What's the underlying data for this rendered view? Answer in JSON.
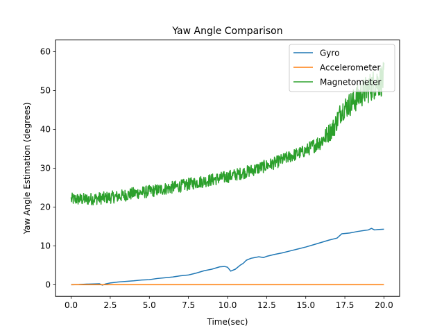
{
  "chart_data": {
    "type": "line",
    "title": "Yaw Angle Comparison",
    "xlabel": "Time(sec)",
    "ylabel": "Yaw Angle Estimation (degrees)",
    "xlim": [
      -1.0,
      21.0
    ],
    "ylim": [
      -3.0,
      63.0
    ],
    "xticks": [
      0.0,
      2.5,
      5.0,
      7.5,
      10.0,
      12.5,
      15.0,
      17.5,
      20.0
    ],
    "xtick_labels": [
      "0.0",
      "2.5",
      "5.0",
      "7.5",
      "10.0",
      "12.5",
      "15.0",
      "17.5",
      "20.0"
    ],
    "yticks": [
      0,
      10,
      20,
      30,
      40,
      50,
      60
    ],
    "ytick_labels": [
      "0",
      "10",
      "20",
      "30",
      "40",
      "50",
      "60"
    ],
    "grid": false,
    "legend_position": "top-right",
    "series": [
      {
        "name": "Gyro",
        "color": "#1f77b4",
        "x": [
          0,
          0.5,
          1.0,
          1.5,
          1.8,
          2.0,
          2.2,
          2.5,
          3.0,
          3.5,
          4.0,
          4.5,
          5.0,
          5.5,
          6.0,
          6.5,
          7.0,
          7.5,
          8.0,
          8.5,
          9.0,
          9.5,
          9.8,
          10.0,
          10.2,
          10.5,
          10.8,
          11.0,
          11.2,
          11.5,
          12.0,
          12.3,
          12.5,
          13.0,
          13.5,
          14.0,
          14.5,
          15.0,
          15.5,
          16.0,
          16.5,
          17.0,
          17.3,
          17.8,
          18.3,
          18.8,
          19.0,
          19.2,
          19.4,
          19.6,
          20.0
        ],
        "values": [
          0.0,
          0.05,
          0.15,
          0.2,
          0.25,
          -0.1,
          0.2,
          0.45,
          0.7,
          0.85,
          1.0,
          1.2,
          1.3,
          1.6,
          1.8,
          2.0,
          2.3,
          2.5,
          3.0,
          3.6,
          4.0,
          4.6,
          4.7,
          4.5,
          3.5,
          4.0,
          5.0,
          5.5,
          6.3,
          6.8,
          7.2,
          7.0,
          7.3,
          7.8,
          8.2,
          8.7,
          9.2,
          9.7,
          10.3,
          10.9,
          11.5,
          12.0,
          13.1,
          13.3,
          13.7,
          14.0,
          14.1,
          14.5,
          14.1,
          14.2,
          14.3
        ]
      },
      {
        "name": "Accelerometer",
        "color": "#ff7f0e",
        "x": [
          0,
          20
        ],
        "values": [
          0,
          0
        ]
      },
      {
        "name": "Magnetometer",
        "color": "#2ca02c",
        "x": [
          0,
          1,
          2,
          3,
          4,
          5,
          6,
          7,
          8,
          9,
          10,
          11,
          12,
          13,
          14,
          15,
          16,
          16.8,
          17.3,
          18,
          18.5,
          19,
          19.5,
          20
        ],
        "values": [
          22,
          22,
          22.3,
          22.7,
          23.5,
          24,
          24.7,
          25.4,
          26.3,
          27,
          27.8,
          28.8,
          30,
          31.3,
          33,
          34.5,
          37,
          40.5,
          45,
          47,
          49,
          50.5,
          52,
          53
        ]
      }
    ]
  }
}
